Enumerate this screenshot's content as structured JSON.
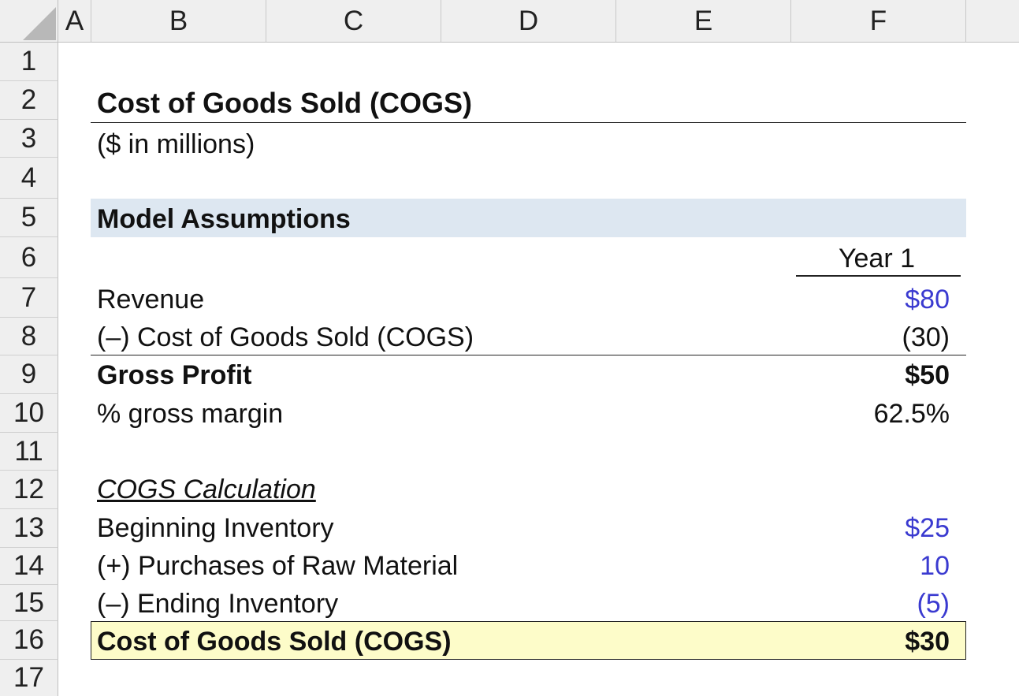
{
  "spreadsheet": {
    "columns": [
      "A",
      "B",
      "C",
      "D",
      "E",
      "F"
    ],
    "rows": [
      "1",
      "2",
      "3",
      "4",
      "5",
      "6",
      "7",
      "8",
      "9",
      "10",
      "11",
      "12",
      "13",
      "14",
      "15",
      "16",
      "17"
    ]
  },
  "model": {
    "title": "Cost of Goods Sold (COGS)",
    "subtitle": "($ in millions)",
    "section_header": "Model Assumptions",
    "period_header": "Year 1",
    "revenue_label": "Revenue",
    "revenue_value": "$80",
    "cogs_label": "(–) Cost of Goods Sold (COGS)",
    "cogs_value": "(30)",
    "gross_profit_label": "Gross Profit",
    "gross_profit_value": "$50",
    "gross_margin_label": "% gross margin",
    "gross_margin_value": "62.5%",
    "calc_header": "COGS Calculation",
    "beginning_inventory_label": "Beginning Inventory",
    "beginning_inventory_value": "$25",
    "purchases_label": "(+) Purchases of Raw Material",
    "purchases_value": "10",
    "ending_inventory_label": "(–) Ending Inventory",
    "ending_inventory_value": "(5)",
    "cogs_total_label": "Cost of Goods Sold (COGS)",
    "cogs_total_value": "$30"
  },
  "colors": {
    "input_blue": "#3a3ad0",
    "section_fill": "#dde7f1",
    "highlight_fill": "#fdfcc9",
    "header_gray": "#efefef"
  }
}
